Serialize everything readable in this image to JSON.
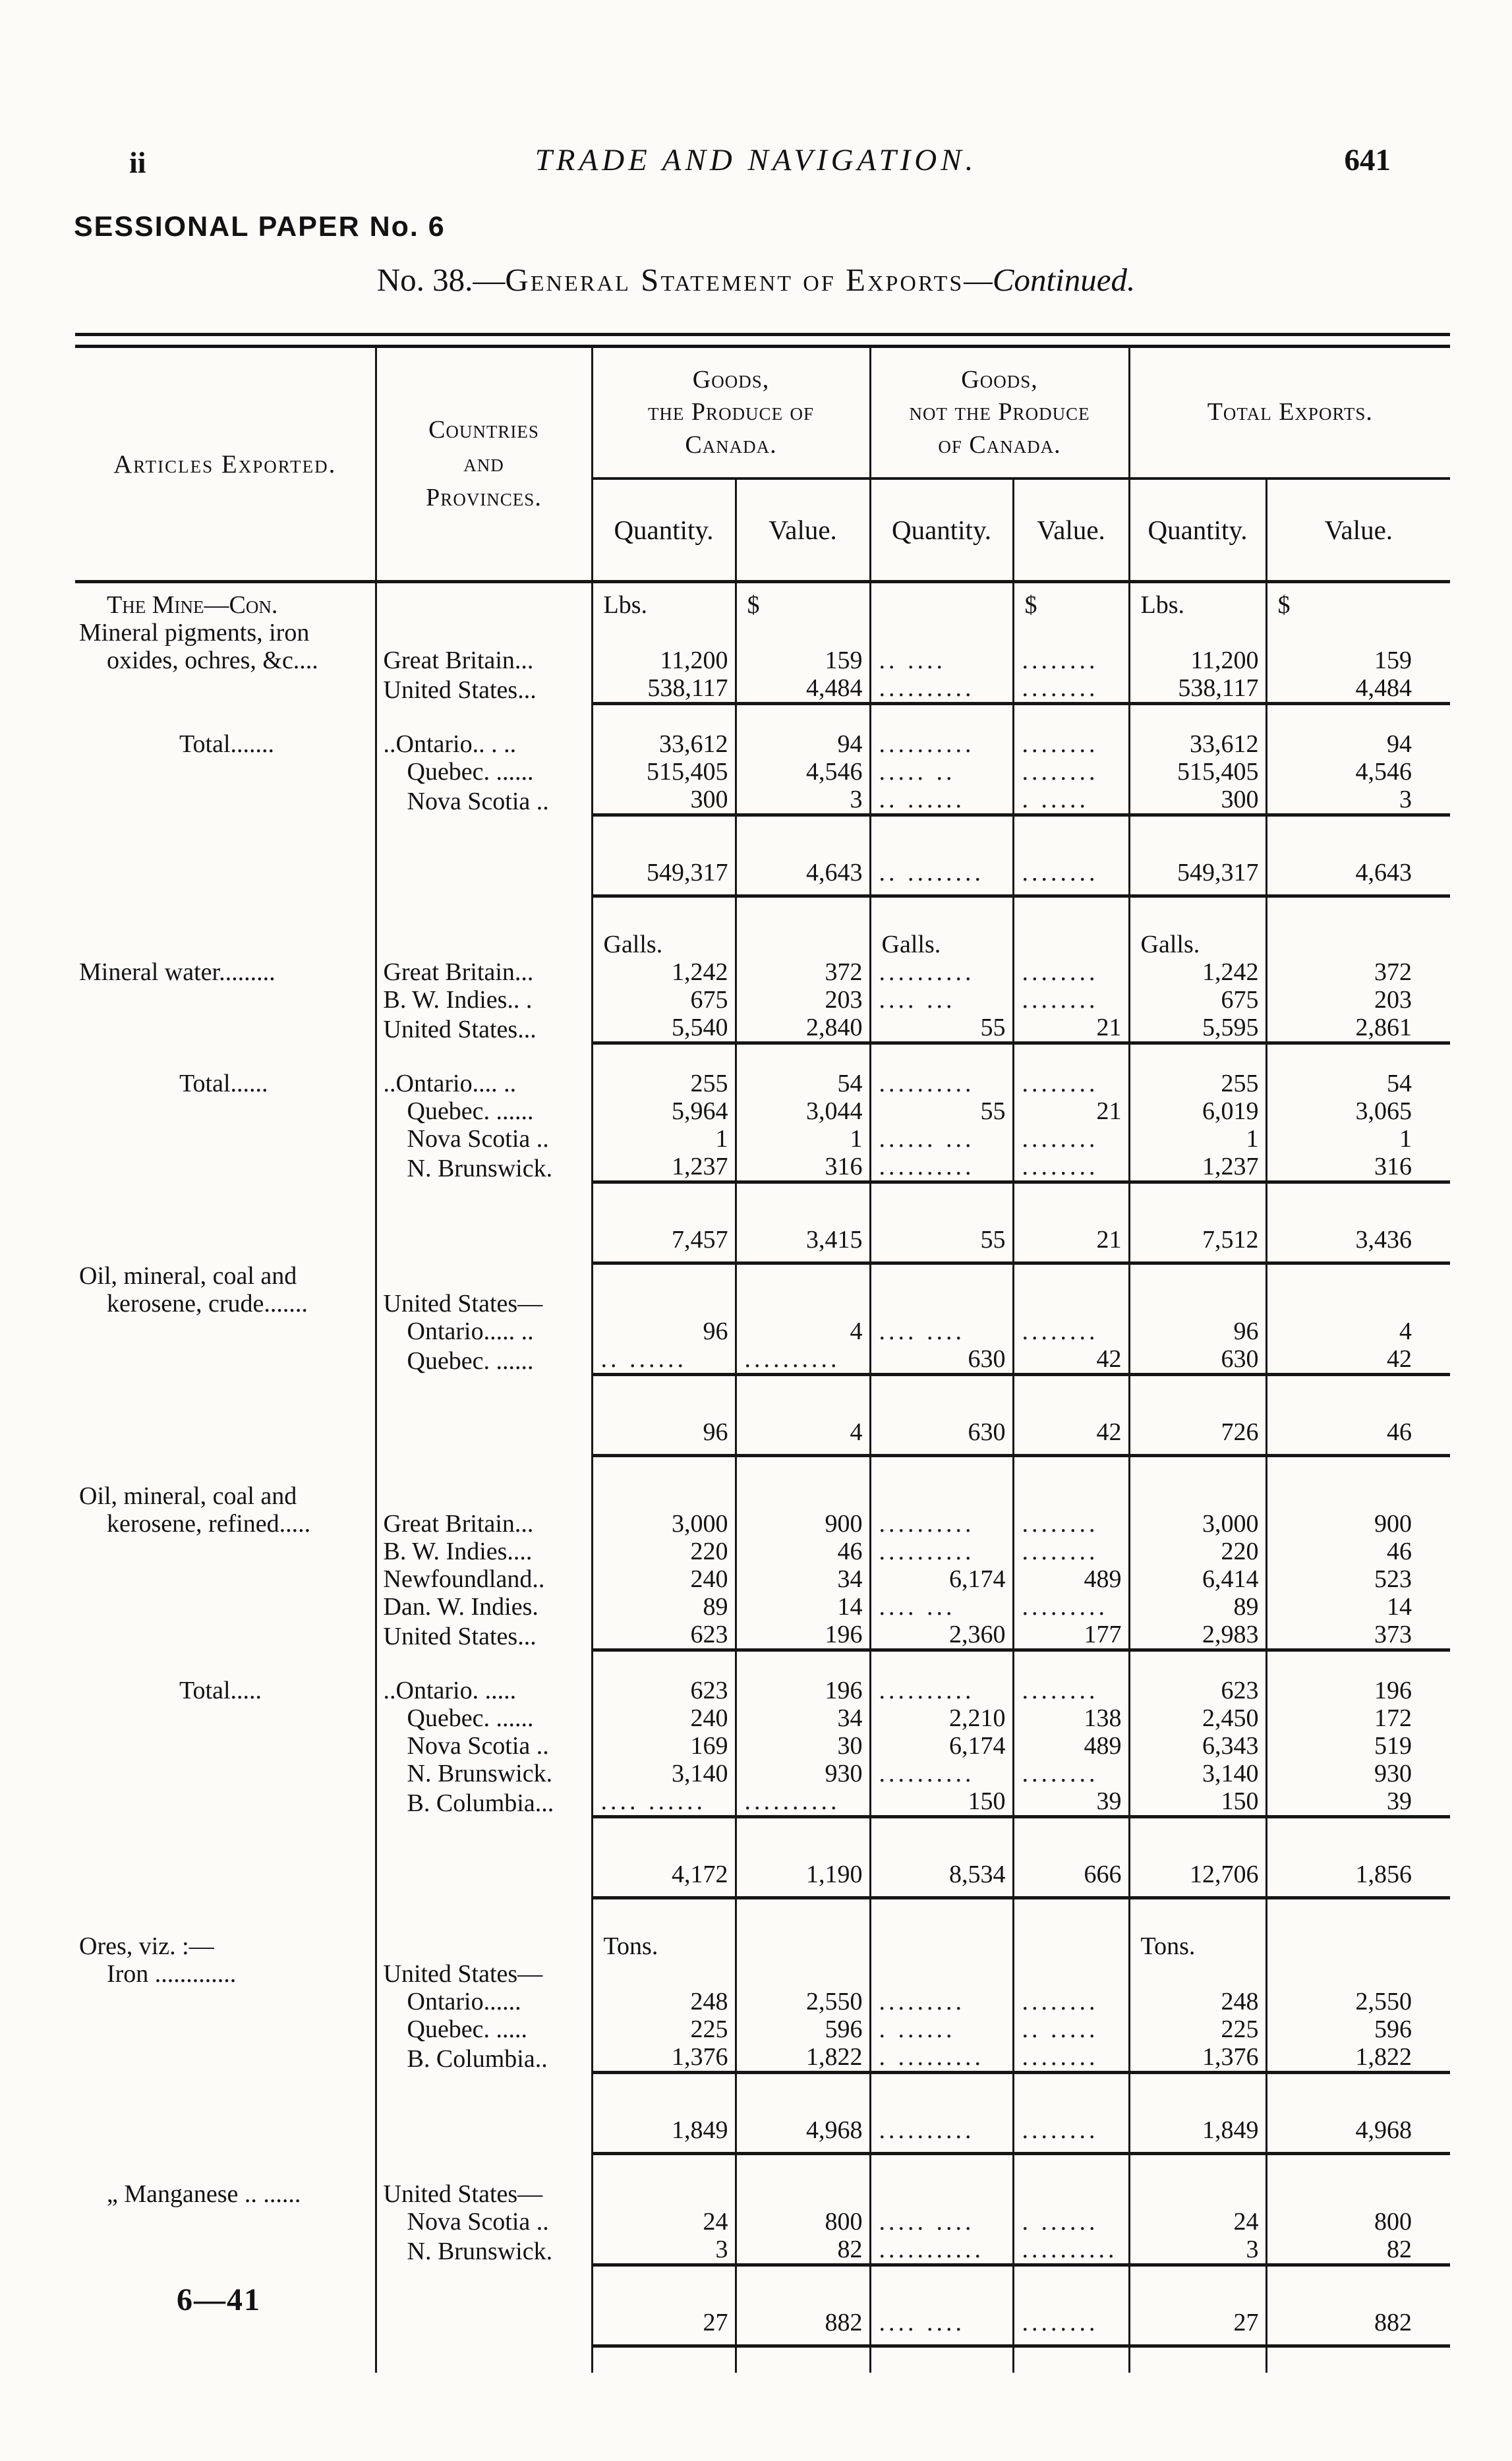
{
  "page": {
    "folio_left": "ii",
    "running_title": "TRADE AND NAVIGATION.",
    "page_number": "641",
    "session_line": "SESSIONAL PAPER No. 6",
    "title_no": "No. 38.—",
    "title_main": "General Statement of Exports",
    "title_continued": "—Continued.",
    "footer_signature": "6—41"
  },
  "table": {
    "header": {
      "articles": "Articles Exported.",
      "countries": "Countries\nand\nProvinces.",
      "goods_canada": "Goods,\nthe Produce of\nCanada.",
      "goods_not_canada": "Goods,\nnot the Produce\nof Canada.",
      "total_exports": "Total Exports.",
      "quantity": "Quantity.",
      "value": "Value."
    },
    "rows": [
      {
        "k": "u",
        "sc": 1,
        "ai": 1,
        "a": "The Mine—Con.",
        "d": [
          "Lbs.",
          "$",
          "",
          "$",
          "Lbs.",
          "$"
        ]
      },
      {
        "a": "Mineral pigments, iron"
      },
      {
        "ai": 1,
        "a": "oxides, ochres, &c....",
        "c": "Great Britain...",
        "d": [
          "11,200",
          "159",
          ".. ....",
          "........",
          "11,200",
          "159"
        ]
      },
      {
        "c": "United States...",
        "d": [
          "538,117",
          "4,484",
          "..........",
          "........",
          "538,117",
          "4,484"
        ]
      },
      {
        "k": "r"
      },
      {
        "ai": 2,
        "a": "Total.......",
        "c": "..Ontario.. . ..",
        "d": [
          "33,612",
          "94",
          "..........",
          "........",
          "33,612",
          "94"
        ]
      },
      {
        "ci": 1,
        "c": "Quebec. ......",
        "d": [
          "515,405",
          "4,546",
          "..... ..",
          "........",
          "515,405",
          "4,546"
        ]
      },
      {
        "ci": 1,
        "c": "Nova Scotia ..",
        "d": [
          "300",
          "3",
          ".. ......",
          ". .....",
          "300",
          "3"
        ]
      },
      {
        "k": "r"
      },
      {
        "k": "s",
        "d": [
          "549,317",
          "4,643",
          ".. ........",
          "........",
          "549,317",
          "4,643"
        ]
      },
      {
        "k": "r"
      },
      {
        "k": "u",
        "d": [
          "Galls.",
          "",
          "Galls.",
          "",
          "Galls.",
          ""
        ]
      },
      {
        "a": "Mineral water.........",
        "c": "Great Britain...",
        "d": [
          "1,242",
          "372",
          "..........",
          "........",
          "1,242",
          "372"
        ]
      },
      {
        "c": "B. W. Indies.. .",
        "d": [
          "675",
          "203",
          ".... ...",
          "........",
          "675",
          "203"
        ]
      },
      {
        "c": "United States...",
        "d": [
          "5,540",
          "2,840",
          "55",
          "21",
          "5,595",
          "2,861"
        ]
      },
      {
        "k": "r"
      },
      {
        "ai": 2,
        "a": "Total......",
        "c": "..Ontario.... ..",
        "d": [
          "255",
          "54",
          "..........",
          "........",
          "255",
          "54"
        ]
      },
      {
        "ci": 1,
        "c": "Quebec. ......",
        "d": [
          "5,964",
          "3,044",
          "55",
          "21",
          "6,019",
          "3,065"
        ]
      },
      {
        "ci": 1,
        "c": "Nova Scotia ..",
        "d": [
          "1",
          "1",
          "...... ...",
          "........",
          "1",
          "1"
        ]
      },
      {
        "ci": 1,
        "c": "N. Brunswick.",
        "d": [
          "1,237",
          "316",
          "..........",
          "........",
          "1,237",
          "316"
        ]
      },
      {
        "k": "r"
      },
      {
        "k": "s",
        "d": [
          "7,457",
          "3,415",
          "55",
          "21",
          "7,512",
          "3,436"
        ]
      },
      {
        "k": "r",
        "a": "Oil, mineral, coal and"
      },
      {
        "ai": 1,
        "a": "kerosene, crude.......",
        "c": "United States—"
      },
      {
        "ci": 1,
        "c": "Ontario..... ..",
        "d": [
          "96",
          "4",
          ".... ....",
          "........",
          "96",
          "4"
        ]
      },
      {
        "ci": 1,
        "c": "Quebec. ......",
        "d": [
          ".. ......",
          "..........",
          "630",
          "42",
          "630",
          "42"
        ]
      },
      {
        "k": "r"
      },
      {
        "k": "s",
        "d": [
          "96",
          "4",
          "630",
          "42",
          "726",
          "46"
        ]
      },
      {
        "k": "r"
      },
      {
        "a": "Oil, mineral, coal and"
      },
      {
        "ai": 1,
        "a": "kerosene, refined.....",
        "c": "Great Britain...",
        "d": [
          "3,000",
          "900",
          "..........",
          "........",
          "3,000",
          "900"
        ]
      },
      {
        "c": "B. W. Indies....",
        "d": [
          "220",
          "46",
          "..........",
          "........",
          "220",
          "46"
        ]
      },
      {
        "c": "Newfoundland..",
        "d": [
          "240",
          "34",
          "6,174",
          "489",
          "6,414",
          "523"
        ]
      },
      {
        "c": "Dan. W. Indies.",
        "d": [
          "89",
          "14",
          ".... ...",
          ".........",
          "89",
          "14"
        ]
      },
      {
        "c": "United States...",
        "d": [
          "623",
          "196",
          "2,360",
          "177",
          "2,983",
          "373"
        ]
      },
      {
        "k": "r"
      },
      {
        "ai": 2,
        "a": "Total.....",
        "c": "..Ontario. .....",
        "d": [
          "623",
          "196",
          "..........",
          "........",
          "623",
          "196"
        ]
      },
      {
        "ci": 1,
        "c": "Quebec. ......",
        "d": [
          "240",
          "34",
          "2,210",
          "138",
          "2,450",
          "172"
        ]
      },
      {
        "ci": 1,
        "c": "Nova Scotia ..",
        "d": [
          "169",
          "30",
          "6,174",
          "489",
          "6,343",
          "519"
        ]
      },
      {
        "ci": 1,
        "c": "N. Brunswick.",
        "d": [
          "3,140",
          "930",
          "..........",
          "........",
          "3,140",
          "930"
        ]
      },
      {
        "ci": 1,
        "c": "B. Columbia...",
        "d": [
          ".... ......",
          "..........",
          "150",
          "39",
          "150",
          "39"
        ]
      },
      {
        "k": "r"
      },
      {
        "k": "s",
        "d": [
          "4,172",
          "1,190",
          "8,534",
          "666",
          "12,706",
          "1,856"
        ]
      },
      {
        "k": "r"
      },
      {
        "k": "u",
        "a": "Ores, viz. :—",
        "d": [
          "Tons.",
          "",
          "",
          "",
          "Tons.",
          ""
        ]
      },
      {
        "ai": 1,
        "a": "Iron .............",
        "c": "United States—"
      },
      {
        "ci": 1,
        "c": "Ontario......",
        "d": [
          "248",
          "2,550",
          ".........",
          "........",
          "248",
          "2,550"
        ]
      },
      {
        "ci": 1,
        "c": "Quebec. .....",
        "d": [
          "225",
          "596",
          ". ......",
          ".. .....",
          "225",
          "596"
        ]
      },
      {
        "ci": 1,
        "c": "B. Columbia..",
        "d": [
          "1,376",
          "1,822",
          ". .........",
          "........",
          "1,376",
          "1,822"
        ]
      },
      {
        "k": "r"
      },
      {
        "k": "s",
        "d": [
          "1,849",
          "4,968",
          "..........",
          "........",
          "1,849",
          "4,968"
        ]
      },
      {
        "k": "r"
      },
      {
        "ai": 1,
        "a": "„ Manganese .. ......",
        "c": "United States—"
      },
      {
        "ci": 1,
        "c": "Nova Scotia ..",
        "d": [
          "24",
          "800",
          "..... ....",
          ". ......",
          "24",
          "800"
        ]
      },
      {
        "ci": 1,
        "c": "N. Brunswick.",
        "d": [
          "3",
          "82",
          "...........",
          "..........",
          "3",
          "82"
        ]
      },
      {
        "k": "r"
      },
      {
        "k": "s",
        "d": [
          "27",
          "882",
          ".... ....",
          "........",
          "27",
          "882"
        ]
      },
      {
        "k": "r"
      }
    ]
  }
}
